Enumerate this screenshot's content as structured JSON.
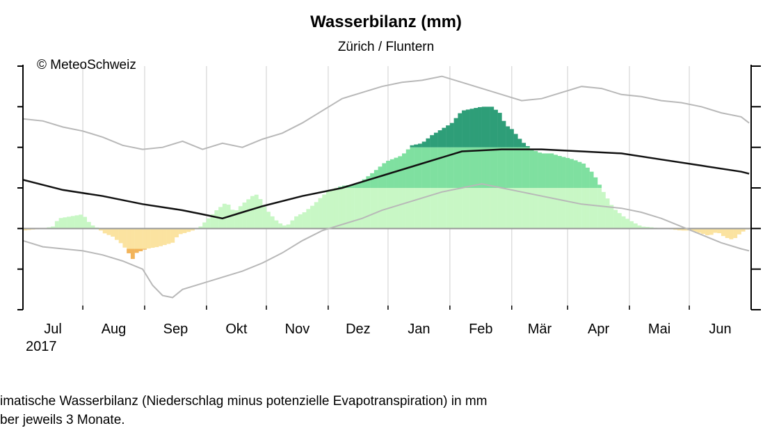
{
  "chart_data": {
    "type": "bar",
    "title": "Wasserbilanz (mm)",
    "subtitle": "Zürich / Fluntern",
    "copyright": "© MeteoSchweiz",
    "year_label": "2017",
    "xlabel": "",
    "ylabel": "",
    "x_tick_labels": [
      "Jul",
      "Aug",
      "Sep",
      "Okt",
      "Nov",
      "Dez",
      "Jan",
      "Feb",
      "Mär",
      "Apr",
      "Mai",
      "Jun"
    ],
    "ylim": [
      -200,
      400
    ],
    "y_ticks": [
      -200,
      -100,
      0,
      100,
      200,
      300,
      400
    ],
    "grid": true,
    "colors": {
      "bar_light_green": "#c8f7c5",
      "bar_mid_green": "#7fe0a0",
      "bar_dark_green": "#2e9e78",
      "bar_yellow": "#fbe3a0",
      "bar_orange": "#f2b45a",
      "mean_line": "#111111",
      "envelope_lines": "#b8b8b8",
      "grid": "#d9d9d9",
      "zero_line": "#999999"
    },
    "days_total": 365,
    "month_starts": [
      0,
      30,
      61,
      92,
      122,
      153,
      183,
      214,
      245,
      273,
      304,
      334
    ],
    "balance_points": [
      [
        0,
        -5
      ],
      [
        10,
        0
      ],
      [
        15,
        5
      ],
      [
        18,
        25
      ],
      [
        24,
        30
      ],
      [
        30,
        35
      ],
      [
        34,
        10
      ],
      [
        38,
        0
      ],
      [
        40,
        -10
      ],
      [
        45,
        -20
      ],
      [
        50,
        -40
      ],
      [
        55,
        -75
      ],
      [
        57,
        -60
      ],
      [
        62,
        -50
      ],
      [
        68,
        -45
      ],
      [
        75,
        -35
      ],
      [
        78,
        -15
      ],
      [
        82,
        -10
      ],
      [
        85,
        -5
      ],
      [
        88,
        0
      ],
      [
        92,
        20
      ],
      [
        97,
        45
      ],
      [
        102,
        65
      ],
      [
        106,
        40
      ],
      [
        110,
        60
      ],
      [
        115,
        80
      ],
      [
        118,
        85
      ],
      [
        120,
        60
      ],
      [
        124,
        35
      ],
      [
        128,
        15
      ],
      [
        132,
        5
      ],
      [
        137,
        30
      ],
      [
        141,
        40
      ],
      [
        146,
        60
      ],
      [
        150,
        80
      ],
      [
        154,
        95
      ],
      [
        160,
        105
      ],
      [
        168,
        110
      ],
      [
        176,
        140
      ],
      [
        182,
        165
      ],
      [
        190,
        180
      ],
      [
        195,
        205
      ],
      [
        200,
        210
      ],
      [
        205,
        230
      ],
      [
        210,
        245
      ],
      [
        215,
        260
      ],
      [
        220,
        290
      ],
      [
        225,
        295
      ],
      [
        230,
        300
      ],
      [
        235,
        300
      ],
      [
        239,
        285
      ],
      [
        242,
        255
      ],
      [
        245,
        245
      ],
      [
        250,
        215
      ],
      [
        255,
        195
      ],
      [
        260,
        185
      ],
      [
        265,
        185
      ],
      [
        268,
        180
      ],
      [
        272,
        175
      ],
      [
        276,
        170
      ],
      [
        281,
        160
      ],
      [
        286,
        135
      ],
      [
        291,
        90
      ],
      [
        296,
        50
      ],
      [
        301,
        30
      ],
      [
        306,
        15
      ],
      [
        310,
        5
      ],
      [
        315,
        3
      ],
      [
        320,
        0
      ],
      [
        325,
        -2
      ],
      [
        330,
        -5
      ],
      [
        335,
        -5
      ],
      [
        340,
        -12
      ],
      [
        344,
        -18
      ],
      [
        348,
        -8
      ],
      [
        352,
        -22
      ],
      [
        356,
        -28
      ],
      [
        360,
        -10
      ],
      [
        364,
        0
      ]
    ],
    "mean_points": [
      [
        0,
        120
      ],
      [
        20,
        95
      ],
      [
        40,
        80
      ],
      [
        60,
        60
      ],
      [
        80,
        45
      ],
      [
        90,
        35
      ],
      [
        100,
        25
      ],
      [
        110,
        40
      ],
      [
        120,
        55
      ],
      [
        140,
        80
      ],
      [
        160,
        100
      ],
      [
        180,
        130
      ],
      [
        200,
        160
      ],
      [
        220,
        190
      ],
      [
        240,
        195
      ],
      [
        260,
        195
      ],
      [
        280,
        190
      ],
      [
        300,
        185
      ],
      [
        320,
        170
      ],
      [
        340,
        155
      ],
      [
        360,
        140
      ],
      [
        364,
        135
      ]
    ],
    "upper_envelope_points": [
      [
        0,
        270
      ],
      [
        10,
        265
      ],
      [
        20,
        250
      ],
      [
        30,
        240
      ],
      [
        40,
        225
      ],
      [
        50,
        205
      ],
      [
        60,
        195
      ],
      [
        70,
        200
      ],
      [
        80,
        215
      ],
      [
        90,
        195
      ],
      [
        100,
        210
      ],
      [
        110,
        200
      ],
      [
        120,
        220
      ],
      [
        130,
        235
      ],
      [
        140,
        260
      ],
      [
        150,
        290
      ],
      [
        160,
        320
      ],
      [
        170,
        335
      ],
      [
        180,
        350
      ],
      [
        190,
        360
      ],
      [
        200,
        365
      ],
      [
        210,
        375
      ],
      [
        220,
        360
      ],
      [
        230,
        345
      ],
      [
        240,
        330
      ],
      [
        250,
        315
      ],
      [
        260,
        320
      ],
      [
        270,
        335
      ],
      [
        280,
        350
      ],
      [
        290,
        345
      ],
      [
        300,
        330
      ],
      [
        310,
        325
      ],
      [
        320,
        315
      ],
      [
        330,
        310
      ],
      [
        340,
        300
      ],
      [
        350,
        285
      ],
      [
        360,
        275
      ],
      [
        364,
        260
      ]
    ],
    "lower_envelope_points": [
      [
        0,
        -30
      ],
      [
        10,
        -45
      ],
      [
        20,
        -50
      ],
      [
        30,
        -55
      ],
      [
        40,
        -65
      ],
      [
        50,
        -80
      ],
      [
        60,
        -100
      ],
      [
        65,
        -140
      ],
      [
        70,
        -165
      ],
      [
        75,
        -170
      ],
      [
        80,
        -150
      ],
      [
        90,
        -135
      ],
      [
        100,
        -120
      ],
      [
        110,
        -105
      ],
      [
        120,
        -85
      ],
      [
        130,
        -60
      ],
      [
        140,
        -30
      ],
      [
        150,
        -5
      ],
      [
        160,
        10
      ],
      [
        170,
        25
      ],
      [
        180,
        45
      ],
      [
        190,
        60
      ],
      [
        200,
        75
      ],
      [
        210,
        90
      ],
      [
        220,
        100
      ],
      [
        230,
        110
      ],
      [
        240,
        100
      ],
      [
        250,
        90
      ],
      [
        260,
        80
      ],
      [
        270,
        70
      ],
      [
        280,
        60
      ],
      [
        290,
        55
      ],
      [
        300,
        50
      ],
      [
        310,
        40
      ],
      [
        320,
        25
      ],
      [
        330,
        5
      ],
      [
        340,
        -15
      ],
      [
        350,
        -35
      ],
      [
        360,
        -50
      ],
      [
        364,
        -55
      ]
    ]
  },
  "caption": {
    "line1": "imatische Wasserbilanz (Niederschlag minus potenzielle Evapotranspiration) in mm",
    "line2": "ber jeweils 3 Monate."
  }
}
